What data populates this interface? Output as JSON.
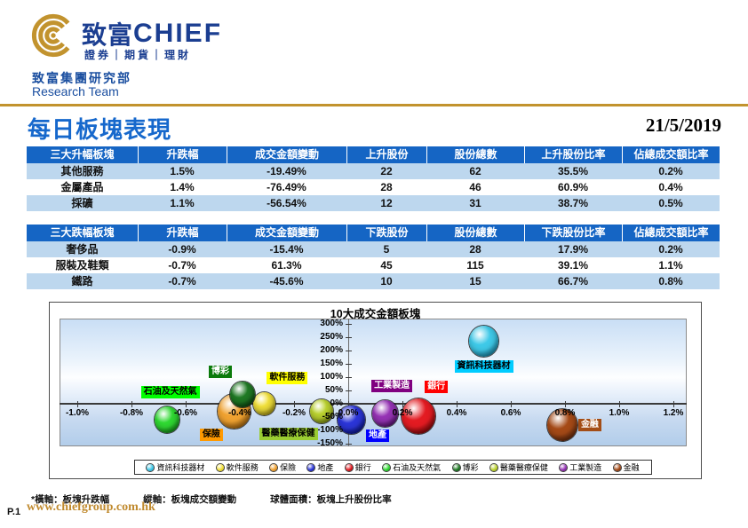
{
  "header": {
    "brand_cn": "致富",
    "brand_en": "CHIEF",
    "tagline": "證券｜期貨｜理財",
    "dept": "致富集團研究部",
    "team": "Research Team"
  },
  "title": {
    "text": "每日板塊表現",
    "date": "21/5/2019"
  },
  "tables": {
    "gainers": {
      "headers": [
        "三大升幅板塊",
        "升跌幅",
        "成交金額變動",
        "上升股份",
        "股份總數",
        "上升股份比率",
        "佔總成交額比率"
      ],
      "rows": [
        [
          "其他服務",
          "1.5%",
          "-19.49%",
          "22",
          "62",
          "35.5%",
          "0.2%"
        ],
        [
          "金屬產品",
          "1.4%",
          "-76.49%",
          "28",
          "46",
          "60.9%",
          "0.4%"
        ],
        [
          "採礦",
          "1.1%",
          "-56.54%",
          "12",
          "31",
          "38.7%",
          "0.5%"
        ]
      ]
    },
    "losers": {
      "headers": [
        "三大跌幅板塊",
        "升跌幅",
        "成交金額變動",
        "下跌股份",
        "股份總數",
        "下跌股份比率",
        "佔總成交額比率"
      ],
      "rows": [
        [
          "奢侈品",
          "-0.9%",
          "-15.4%",
          "5",
          "28",
          "17.9%",
          "0.2%"
        ],
        [
          "服裝及鞋類",
          "-0.7%",
          "61.3%",
          "45",
          "115",
          "39.1%",
          "1.1%"
        ],
        [
          "鐵路",
          "-0.7%",
          "-45.6%",
          "10",
          "15",
          "66.7%",
          "0.8%"
        ]
      ]
    }
  },
  "chart_data": {
    "type": "scatter",
    "subtype": "bubble",
    "title": "10大成交金額板塊",
    "x_axis_meaning": "板塊升跌幅",
    "y_axis_meaning": "板塊成交額變動",
    "bubble_size_meaning": "板塊上升股份比率",
    "x_range": [
      -1.07,
      1.25
    ],
    "y_range": [
      -160,
      320
    ],
    "grid": false,
    "legend_position": "bottom",
    "x_ticks": [
      {
        "v": -1.0,
        "label": "-1.0%"
      },
      {
        "v": -0.8,
        "label": "-0.8%"
      },
      {
        "v": -0.6,
        "label": "-0.6%"
      },
      {
        "v": -0.4,
        "label": "-0.4%"
      },
      {
        "v": -0.2,
        "label": "-0.2%"
      },
      {
        "v": 0.0,
        "label": "0.0%"
      },
      {
        "v": 0.2,
        "label": "0.2%"
      },
      {
        "v": 0.4,
        "label": "0.4%"
      },
      {
        "v": 0.6,
        "label": "0.6%"
      },
      {
        "v": 0.8,
        "label": "0.8%"
      },
      {
        "v": 1.0,
        "label": "1.0%"
      },
      {
        "v": 1.2,
        "label": "1.2%"
      }
    ],
    "y_ticks": [
      {
        "v": 300,
        "label": "300%"
      },
      {
        "v": 250,
        "label": "250%"
      },
      {
        "v": 200,
        "label": "200%"
      },
      {
        "v": 150,
        "label": "150%"
      },
      {
        "v": 100,
        "label": "100%"
      },
      {
        "v": 50,
        "label": "50%"
      },
      {
        "v": 0,
        "label": "0%"
      },
      {
        "v": -50,
        "label": "-50%"
      },
      {
        "v": -100,
        "label": "-100%"
      },
      {
        "v": -150,
        "label": "-150%"
      }
    ],
    "series": [
      {
        "name": "資訊科技器材",
        "x": 0.5,
        "y": 235,
        "d": 33,
        "c1": "#3ec9e8",
        "c2": "#0e7fa6",
        "lb": "#00ccff",
        "lf": "#000000",
        "dx": 0,
        "dy": 28,
        "z": 1
      },
      {
        "name": "軟件服務",
        "x": -0.31,
        "y": 0,
        "d": 25,
        "c1": "#f2e13a",
        "c2": "#9c8a00",
        "lb": "#ffff00",
        "lf": "#000000",
        "dx": 26,
        "dy": -29,
        "z": 2
      },
      {
        "name": "保險",
        "x": -0.42,
        "y": -29,
        "d": 37,
        "c1": "#f0a231",
        "c2": "#9c5a00",
        "lb": "#ff9900",
        "lf": "#000000",
        "dx": -26,
        "dy": 26,
        "z": 3
      },
      {
        "name": "地產",
        "x": 0.01,
        "y": -60,
        "d": 31,
        "c1": "#2b35d8",
        "c2": "#000c7a",
        "lb": "#0000ff",
        "lf": "#ffffff",
        "dx": 30,
        "dy": 18,
        "z": 3
      },
      {
        "name": "銀行",
        "x": 0.26,
        "y": -47,
        "d": 38,
        "c1": "#e31b22",
        "c2": "#6e0000",
        "lb": "#ff0000",
        "lf": "#ffffff",
        "dx": 20,
        "dy": -33,
        "z": 5
      },
      {
        "name": "石油及天然氣",
        "x": -0.67,
        "y": -61,
        "d": 28,
        "c1": "#2fd932",
        "c2": "#0b7a10",
        "lb": "#00ff00",
        "lf": "#000000",
        "dx": 4,
        "dy": -31,
        "z": 1
      },
      {
        "name": "博彩",
        "x": -0.39,
        "y": 35,
        "d": 28,
        "c1": "#1f7a24",
        "c2": "#06380a",
        "lb": "#0b7a0b",
        "lf": "#ffffff",
        "dx": -25,
        "dy": -26,
        "z": 4
      },
      {
        "name": "醫藥醫療保健",
        "x": -0.1,
        "y": -29,
        "d": 26,
        "c1": "#bcd32f",
        "c2": "#6e7e00",
        "lb": "#9acd32",
        "lf": "#000000",
        "dx": -37,
        "dy": 25,
        "z": 2
      },
      {
        "name": "工業製造",
        "x": 0.135,
        "y": -37,
        "d": 29,
        "c1": "#9633b5",
        "c2": "#4a0663",
        "lb": "#800080",
        "lf": "#ffffff",
        "dx": 8,
        "dy": -31,
        "z": 4
      },
      {
        "name": "金融",
        "x": 0.79,
        "y": -80,
        "d": 34,
        "c1": "#a54a17",
        "c2": "#54210a",
        "lb": "#a34d16",
        "lf": "#ffffff",
        "dx": 31,
        "dy": 0,
        "z": 1
      }
    ]
  },
  "footnote": {
    "axis_x": "*橫軸：板塊升跌幅",
    "axis_y": "縱軸：板塊成交額變動",
    "bubble": "球體面積：板塊上升股份比率"
  },
  "footer": {
    "page": "P.1",
    "url": "www.chiefgroup.com.hk"
  },
  "colors": {
    "brand_navy": "#1b3e91",
    "gold": "#c2932e",
    "title_blue": "#1668cc",
    "table_header_bg": "#1565c4",
    "table_row_alt": "#bdd7ee"
  }
}
